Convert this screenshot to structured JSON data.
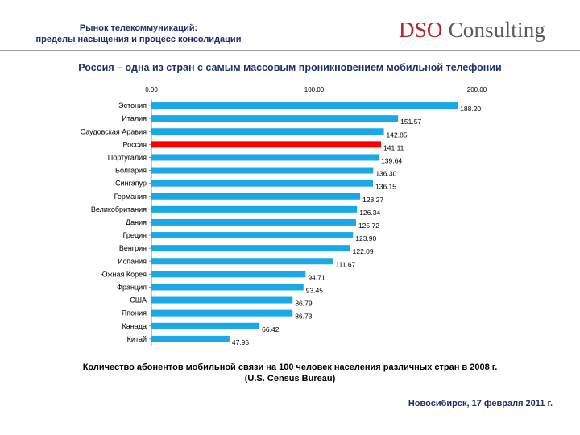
{
  "header": {
    "title_line1": "Рынок телекоммуникаций:",
    "title_line2": "пределы насыщения и процесс консолидации",
    "logo_part1": "DSO",
    "logo_part2": " Consulting"
  },
  "colors": {
    "bar": "#1aa9e6",
    "highlight": "#ff0000",
    "title": "#1f2f6b",
    "brand": "#b2222a"
  },
  "chart_data": {
    "type": "bar",
    "orientation": "horizontal",
    "title": "Россия – одна из стран с самым массовым проникновением мобильной телефонии",
    "categories": [
      "Эстония",
      "Италия",
      "Саудовская Аравия",
      "Россия",
      "Португалия",
      "Болгария",
      "Сингапур",
      "Германия",
      "Великобритания",
      "Дания",
      "Греция",
      "Венгрия",
      "Испания",
      "Южная Корея",
      "Франция",
      "США",
      "Япония",
      "Канада",
      "Китай"
    ],
    "values": [
      188.2,
      151.57,
      142.85,
      141.11,
      139.64,
      136.3,
      136.15,
      128.27,
      126.34,
      125.72,
      123.9,
      122.09,
      111.67,
      94.71,
      93.45,
      86.79,
      86.73,
      66.42,
      47.95
    ],
    "value_labels": [
      "188.20",
      "151.57",
      "142.85",
      "141.11",
      "139.64",
      "136.30",
      "136.15",
      "128.27",
      "126.34",
      "125.72",
      "123.90",
      "122.09",
      "111.67",
      "94.71",
      "93.45",
      "86.79",
      "86.73",
      "66.42",
      "47.95"
    ],
    "highlight": "Россия",
    "xlim": [
      0,
      200
    ],
    "xticks": [
      0,
      100,
      200
    ],
    "xtick_labels": [
      "0.00",
      "100.00",
      "200.00"
    ],
    "axis_position": "top",
    "grid": false
  },
  "caption": {
    "line1": "Количество  абонентов мобильной связи на 100 человек населения различных стран в 2008 г.",
    "line2": "(U.S. Census Bureau)"
  },
  "footer": {
    "text": "Новосибирск, 17 февраля 2011 г."
  }
}
